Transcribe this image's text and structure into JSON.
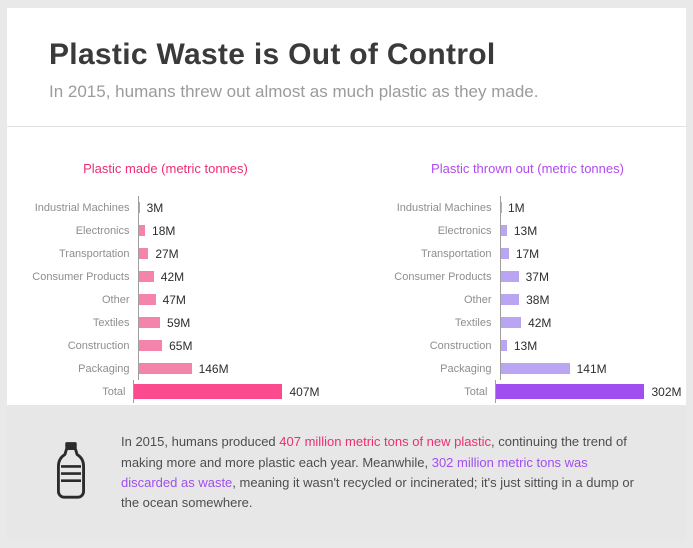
{
  "header": {
    "title": "Plastic Waste is Out of Control",
    "subtitle": "In 2015, humans threw out almost as much plastic as they made."
  },
  "chart_data": [
    {
      "type": "bar",
      "orientation": "horizontal",
      "title": "Plastic made (metric tonnes)",
      "title_color": "#ee2d74",
      "bar_color": "#f584ad",
      "total_color": "#fc4a8f",
      "categories": [
        "Industrial Machines",
        "Electronics",
        "Transportation",
        "Consumer Products",
        "Other",
        "Textiles",
        "Construction",
        "Packaging",
        "Total"
      ],
      "values": [
        3,
        18,
        27,
        42,
        47,
        59,
        65,
        146,
        407
      ],
      "value_labels": [
        "3M",
        "18M",
        "27M",
        "42M",
        "47M",
        "59M",
        "65M",
        "146M",
        "407M"
      ],
      "xlim": [
        0,
        407
      ],
      "grid": false,
      "legend": false
    },
    {
      "type": "bar",
      "orientation": "horizontal",
      "title": "Plastic thrown out (metric tonnes)",
      "title_color": "#b14bef",
      "bar_color": "#b9a5f2",
      "total_color": "#a14ef0",
      "categories": [
        "Industrial Machines",
        "Electronics",
        "Transportation",
        "Consumer Products",
        "Other",
        "Textiles",
        "Construction",
        "Packaging",
        "Total"
      ],
      "values": [
        1,
        13,
        17,
        37,
        38,
        42,
        13,
        141,
        302
      ],
      "value_labels": [
        "1M",
        "13M",
        "17M",
        "37M",
        "38M",
        "42M",
        "13M",
        "141M",
        "302M"
      ],
      "xlim": [
        0,
        302
      ],
      "grid": false,
      "legend": false
    }
  ],
  "footer": {
    "icon": "plastic-bottle-icon",
    "segments": [
      {
        "text": "In 2015, humans produced ",
        "color": null
      },
      {
        "text": "407 million metric tons of new plastic",
        "color": "#ee2d74"
      },
      {
        "text": ", continuing the trend of making more and more plastic each year. Meanwhile, ",
        "color": null
      },
      {
        "text": "302 million metric tons was discarded as waste",
        "color": "#a14ef0"
      },
      {
        "text": ", meaning it wasn't recycled or incinerated; it's just sitting in a dump or the ocean somewhere.",
        "color": null
      }
    ]
  }
}
